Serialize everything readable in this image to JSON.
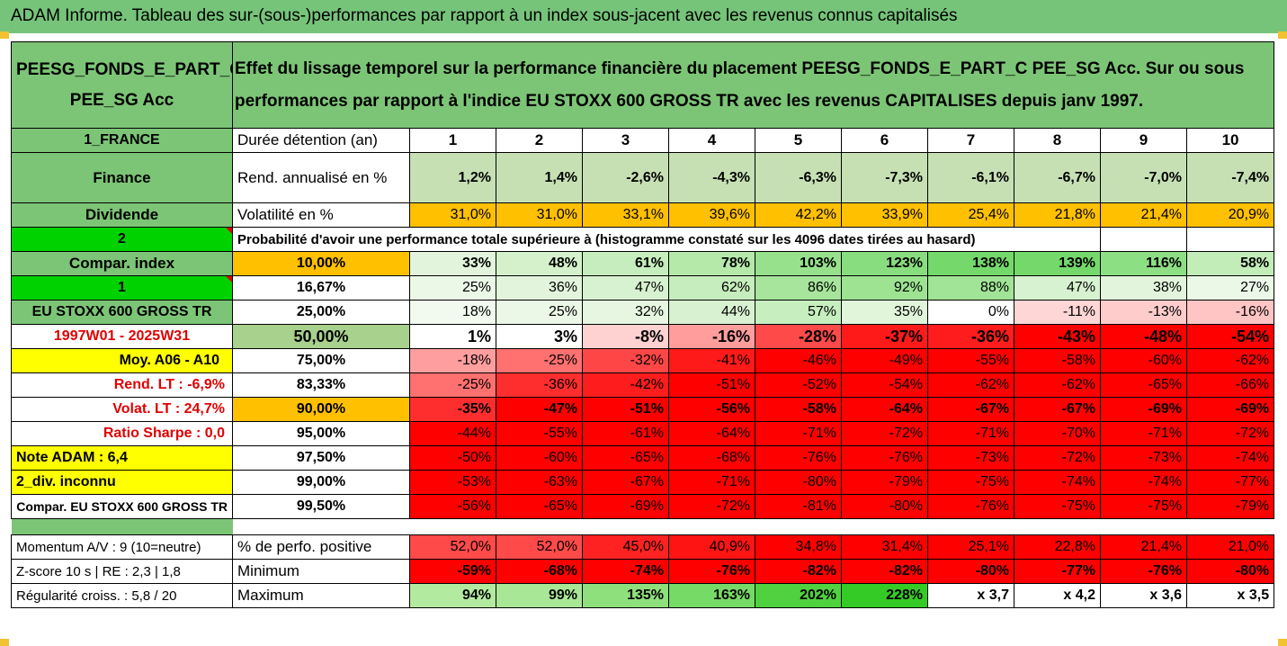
{
  "title": "ADAM Informe. Tableau des sur-(sous-)performances par rapport à un index sous-jacent avec les revenus connus capitalisés",
  "header": {
    "fund_line1": "PEESG_FONDS_E_PART_C",
    "fund_line2": "PEE_SG Acc",
    "description": "Effet du lissage temporel sur la performance financière du placement PEESG_FONDS_E_PART_C PEE_SG Acc. Sur ou sous performances par rapport à l'indice EU STOXX 600 GROSS TR avec les revenus CAPITALISES depuis janv 1997."
  },
  "rows": {
    "duration": {
      "left": "1_FRANCE",
      "label": "Durée détention (an)",
      "values": [
        "1",
        "2",
        "3",
        "4",
        "5",
        "6",
        "7",
        "8",
        "9",
        "10"
      ]
    },
    "return": {
      "left": "Finance",
      "label": "Rend. annualisé en %",
      "values": [
        "1,2%",
        "1,4%",
        "-2,6%",
        "-4,3%",
        "-6,3%",
        "-7,3%",
        "-6,1%",
        "-6,7%",
        "-7,0%",
        "-7,4%"
      ]
    },
    "volatility": {
      "left": "Dividende",
      "label": "Volatilité en %",
      "values": [
        "31,0%",
        "31,0%",
        "33,1%",
        "39,6%",
        "42,2%",
        "33,9%",
        "25,4%",
        "21,8%",
        "21,4%",
        "20,9%"
      ]
    },
    "prob_header": {
      "left": "2",
      "text": "Probabilité d'avoir une performance totale supérieure à (histogramme constaté sur les 4096 dates tirées au hasard)"
    },
    "percentiles": [
      {
        "left": "Compar. index",
        "pct": "10,00%",
        "values": [
          "33%",
          "48%",
          "61%",
          "78%",
          "103%",
          "123%",
          "138%",
          "139%",
          "116%",
          "58%"
        ]
      },
      {
        "left": "1",
        "pct": "16,67%",
        "values": [
          "25%",
          "36%",
          "47%",
          "62%",
          "86%",
          "92%",
          "88%",
          "47%",
          "38%",
          "27%"
        ]
      },
      {
        "left": "EU STOXX 600 GROSS TR",
        "pct": "25,00%",
        "values": [
          "18%",
          "25%",
          "32%",
          "44%",
          "57%",
          "35%",
          "0%",
          "-11%",
          "-13%",
          "-16%"
        ]
      },
      {
        "left": "1997W01 - 2025W31",
        "pct": "50,00%",
        "values": [
          "1%",
          "3%",
          "-8%",
          "-16%",
          "-28%",
          "-37%",
          "-36%",
          "-43%",
          "-48%",
          "-54%"
        ]
      },
      {
        "left": "Moy. A06 - A10",
        "pct": "75,00%",
        "values": [
          "-18%",
          "-25%",
          "-32%",
          "-41%",
          "-46%",
          "-49%",
          "-55%",
          "-58%",
          "-60%",
          "-62%"
        ]
      },
      {
        "left": "Rend. LT :   -6,9%",
        "pct": "83,33%",
        "values": [
          "-25%",
          "-36%",
          "-42%",
          "-51%",
          "-52%",
          "-54%",
          "-62%",
          "-62%",
          "-65%",
          "-66%"
        ]
      },
      {
        "left": "Volat. LT :   24,7%",
        "pct": "90,00%",
        "values": [
          "-35%",
          "-47%",
          "-51%",
          "-56%",
          "-58%",
          "-64%",
          "-67%",
          "-67%",
          "-69%",
          "-69%"
        ]
      },
      {
        "left": "Ratio Sharpe :   0,0",
        "pct": "95,00%",
        "values": [
          "-44%",
          "-55%",
          "-61%",
          "-64%",
          "-71%",
          "-72%",
          "-71%",
          "-70%",
          "-71%",
          "-72%"
        ]
      },
      {
        "left": "Note ADAM : 6,4",
        "pct": "97,50%",
        "values": [
          "-50%",
          "-60%",
          "-65%",
          "-68%",
          "-76%",
          "-76%",
          "-73%",
          "-72%",
          "-73%",
          "-74%"
        ]
      },
      {
        "left": "2_div. inconnu",
        "pct": "99,00%",
        "values": [
          "-53%",
          "-63%",
          "-67%",
          "-71%",
          "-80%",
          "-79%",
          "-75%",
          "-74%",
          "-74%",
          "-77%"
        ]
      },
      {
        "left": "Compar. EU STOXX 600 GROSS TR",
        "pct": "99,50%",
        "values": [
          "-56%",
          "-65%",
          "-69%",
          "-72%",
          "-81%",
          "-80%",
          "-76%",
          "-75%",
          "-75%",
          "-79%"
        ]
      }
    ],
    "positive": {
      "left": "Momentum A/V : 9 (10=neutre)",
      "label": "% de perfo. positive",
      "values": [
        "52,0%",
        "52,0%",
        "45,0%",
        "40,9%",
        "34,8%",
        "31,4%",
        "25,1%",
        "22,8%",
        "21,4%",
        "21,0%"
      ]
    },
    "minimum": {
      "left": "Z-score 10 s  |  RE : 2,3  |  1,8",
      "label": "Minimum",
      "values": [
        "-59%",
        "-68%",
        "-74%",
        "-76%",
        "-82%",
        "-82%",
        "-80%",
        "-77%",
        "-76%",
        "-80%"
      ]
    },
    "maximum": {
      "left": "Régularité croiss. : 5,8 / 20",
      "label": "Maximum",
      "values": [
        "94%",
        "99%",
        "135%",
        "163%",
        "202%",
        "228%",
        "x 3,7",
        "x 4,2",
        "x 3,6",
        "x 3,5"
      ]
    }
  },
  "colors": {
    "header_green": "#7cc576",
    "orange": "#ffc000",
    "bright_green": "#00d200",
    "yellow": "#ffff00",
    "red": "#ff0000"
  }
}
